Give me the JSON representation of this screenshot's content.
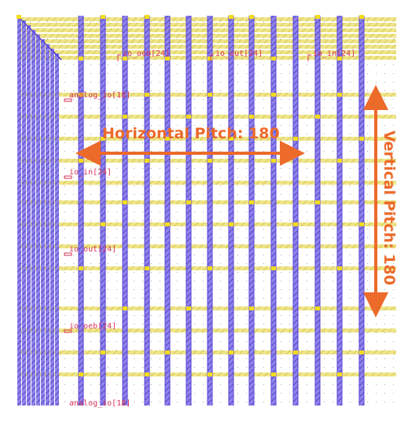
{
  "colors": {
    "background": "#ffffff",
    "metal_horizontal": "#e9dd5a",
    "metal_horizontal_hatch": "#d8c63a",
    "metal_vertical": "#5a44d8",
    "metal_vertical_hatch": "#3a2bb8",
    "via": "#f2dc1a",
    "pin_label": "#d8365a",
    "annotation": "#ec6a2a",
    "grid_dot": "#b0b0b0"
  },
  "top_pins": [
    "io_oeb[24]",
    "io_out[24]",
    "io_in[24]"
  ],
  "side_pins": [
    "analog_io[18]",
    "io_in[24]",
    "io_out[24]",
    "io_oeb[24]",
    "analog_io[18]"
  ],
  "annotations": {
    "horizontal_pitch": "Horizontal Pitch: 180",
    "vertical_pitch": "Vertical Pitch: 180"
  }
}
